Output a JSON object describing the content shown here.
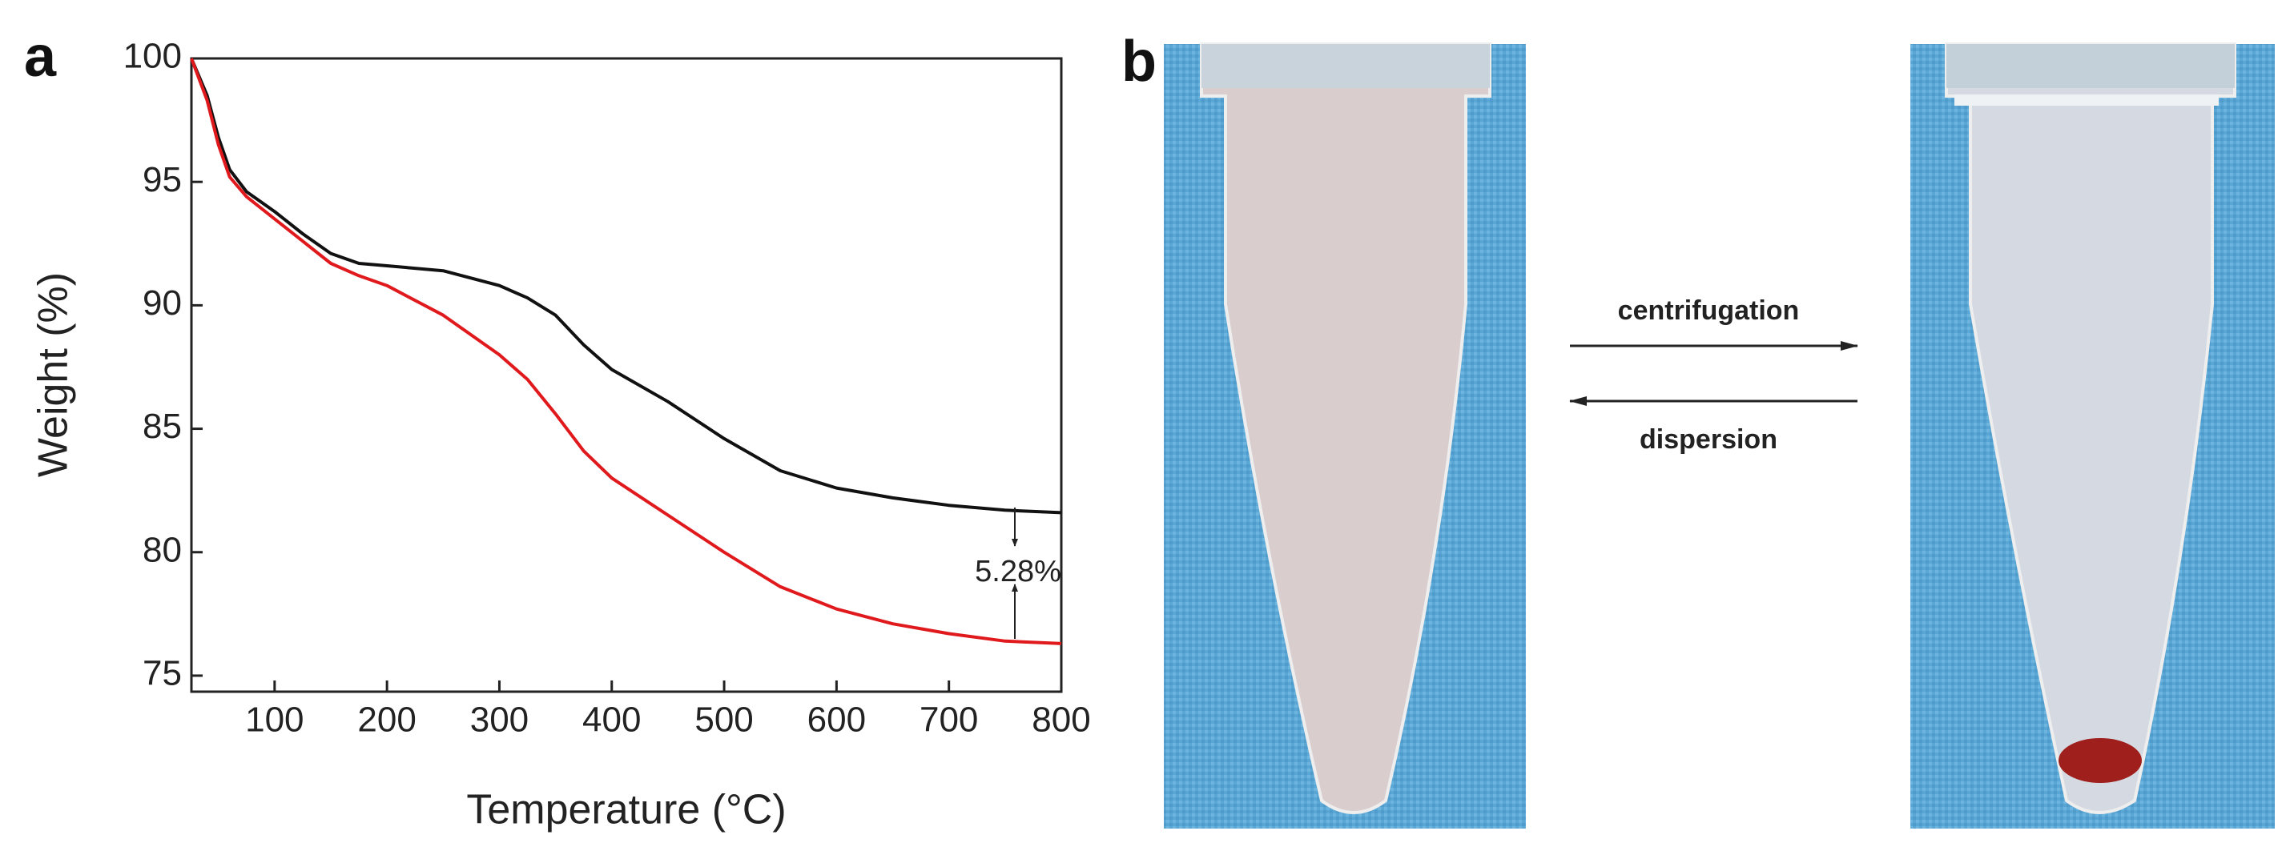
{
  "chart_data": {
    "type": "line",
    "x_label": "Temperature (°C)",
    "y_label": "Weight (%)",
    "x": [
      26,
      40,
      50,
      60,
      75,
      100,
      125,
      150,
      175,
      200,
      250,
      300,
      325,
      350,
      375,
      400,
      450,
      500,
      550,
      600,
      650,
      700,
      750,
      800
    ],
    "series": [
      {
        "color": "#111111",
        "values": [
          100,
          98.5,
          96.8,
          95.5,
          94.6,
          93.8,
          92.9,
          92.1,
          91.7,
          91.6,
          91.4,
          90.8,
          90.3,
          89.6,
          88.4,
          87.4,
          86.1,
          84.6,
          83.3,
          82.6,
          82.2,
          81.9,
          81.7,
          81.6
        ]
      },
      {
        "color": "#e0191d",
        "values": [
          100,
          98.3,
          96.5,
          95.2,
          94.4,
          93.5,
          92.6,
          91.7,
          91.2,
          90.8,
          89.6,
          88.0,
          87.0,
          85.6,
          84.1,
          83.0,
          81.5,
          80.0,
          78.6,
          77.7,
          77.1,
          76.7,
          76.4,
          76.3
        ]
      }
    ],
    "annotation": "5.28%",
    "xlim": [
      26,
      800
    ],
    "ylim": [
      74.35,
      100
    ],
    "xticks": [
      100,
      200,
      300,
      400,
      500,
      600,
      700,
      800
    ],
    "yticks": [
      75,
      80,
      85,
      90,
      95,
      100
    ]
  },
  "panel_labels": [
    "a",
    "b"
  ],
  "photo_panel": {
    "forward_label": "centrifugation",
    "reverse_label": "dispersion"
  }
}
